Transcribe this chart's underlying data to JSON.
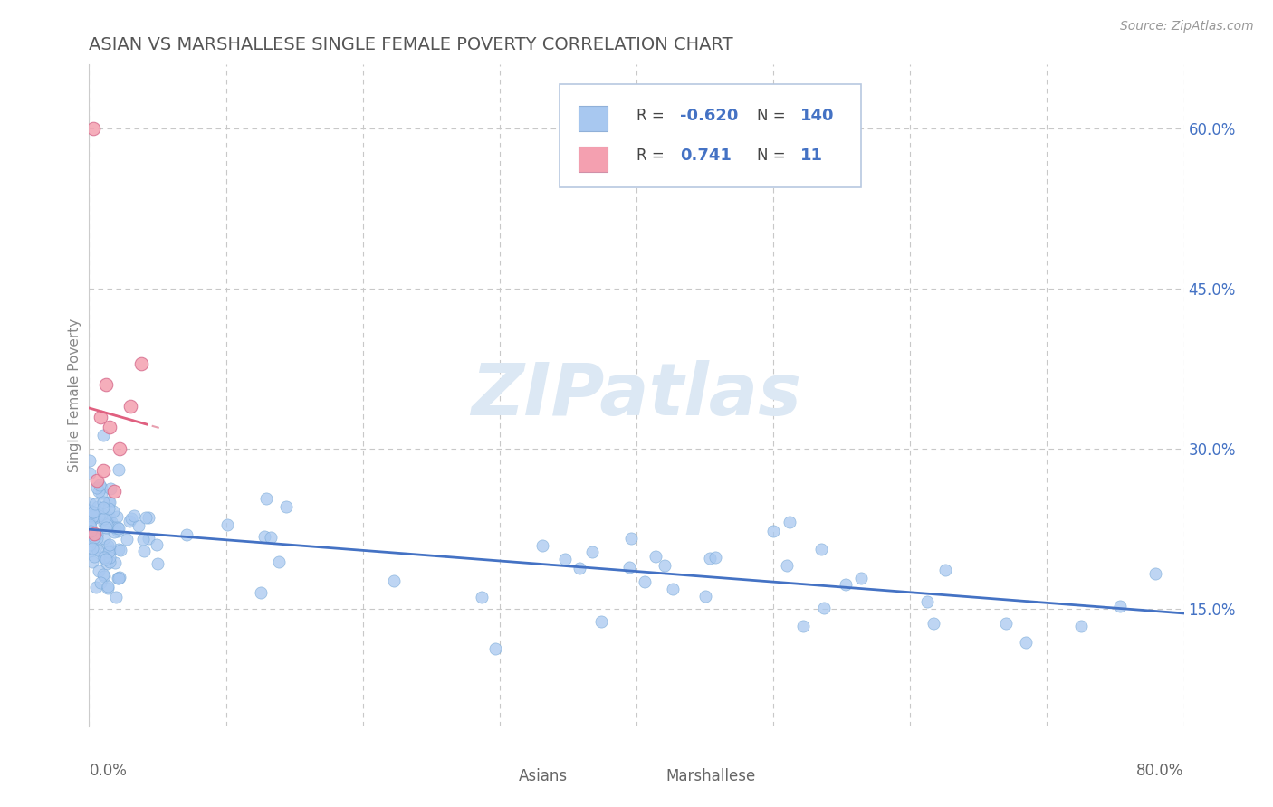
{
  "title": "ASIAN VS MARSHALLESE SINGLE FEMALE POVERTY CORRELATION CHART",
  "source": "Source: ZipAtlas.com",
  "ylabel": "Single Female Poverty",
  "xlim": [
    0.0,
    0.8
  ],
  "ylim": [
    0.04,
    0.66
  ],
  "ytick_vals": [
    0.15,
    0.3,
    0.45,
    0.6
  ],
  "ytick_labels": [
    "15.0%",
    "30.0%",
    "45.0%",
    "60.0%"
  ],
  "legend_asian_r": "-0.620",
  "legend_asian_n": "140",
  "legend_marsh_r": "0.741",
  "legend_marsh_n": "11",
  "asian_color": "#a8c8f0",
  "asian_edge_color": "#7aaad8",
  "marshallese_color": "#f4a0b0",
  "marshallese_edge_color": "#d87090",
  "asian_line_color": "#4472c4",
  "marshallese_line_color": "#e06080",
  "marshallese_dash_color": "#e8a0b0",
  "watermark_color": "#dce8f4",
  "background_color": "#ffffff",
  "grid_color": "#c8c8c8",
  "title_color": "#555555",
  "r_value_color": "#4472c4",
  "axis_label_color": "#4472c4",
  "bottom_label_color": "#666666"
}
